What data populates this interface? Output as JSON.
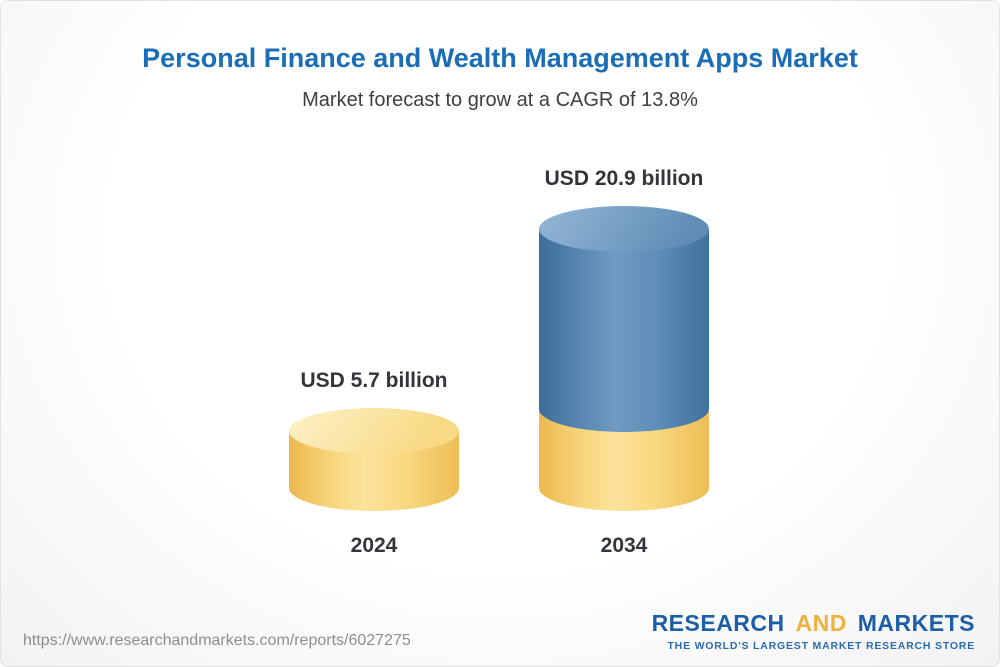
{
  "header": {
    "title": "Personal Finance and Wealth Management Apps Market",
    "subtitle": "Market forecast to grow at a CAGR of 13.8%"
  },
  "chart_data": {
    "type": "bar",
    "categories": [
      "2024",
      "2034"
    ],
    "values": [
      5.7,
      20.9
    ],
    "value_labels": [
      "USD 5.7 billion",
      "USD 20.9 billion"
    ],
    "unit": "USD billion",
    "title": "Personal Finance and Wealth Management Apps Market",
    "subtitle": "Market forecast to grow at a CAGR of 13.8%",
    "cagr_percent": 13.8,
    "bar_colors": {
      "2024": "#f5ce6e",
      "2034": "#4a80af"
    },
    "ylim": [
      0,
      22
    ],
    "legend": "none",
    "grid": "off"
  },
  "footer": {
    "url": "https://www.researchandmarkets.com/reports/6027275",
    "logo": {
      "part1": "RESEARCH",
      "part2": "AND",
      "part3": "MARKETS",
      "tagline": "THE WORLD'S LARGEST MARKET RESEARCH STORE",
      "brand_blue": "#1d5fa7",
      "brand_gold": "#f0b03c"
    }
  }
}
